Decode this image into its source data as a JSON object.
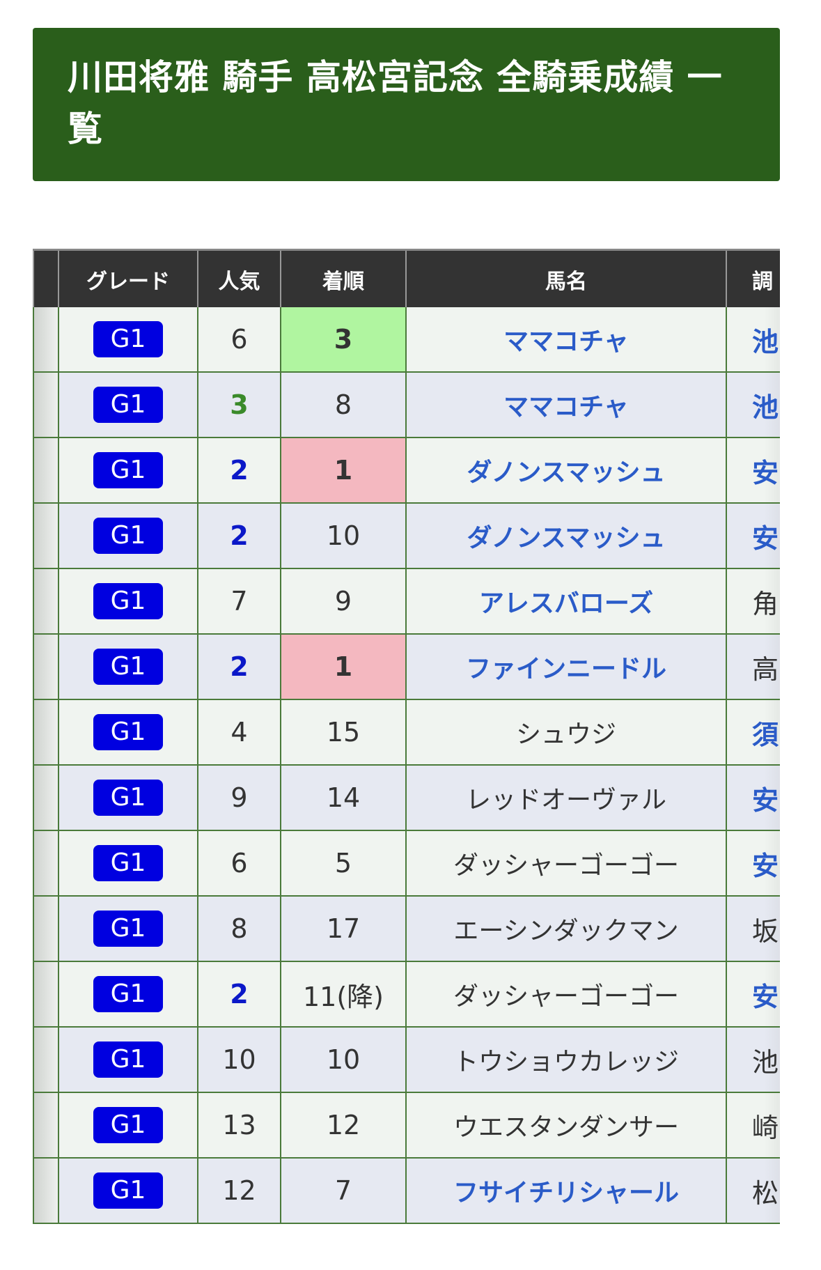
{
  "page_title": "川田将雅 騎手 高松宮記念 全騎乗成績 一覧",
  "columns": [
    "",
    "グレード",
    "人気",
    "着順",
    "馬名",
    "調"
  ],
  "colors": {
    "title_bg": "#2a5e1b",
    "header_bg": "#333333",
    "win_bg": "#f4b8c0",
    "place_bg": "#b0f5a0",
    "link": "#2a5bc8",
    "grade_badge": "#0000e0"
  },
  "rows": [
    {
      "grade": "G1",
      "pop": "6",
      "finish": "3",
      "horse": "ママコチャ",
      "trainer": "池",
      "finish_hl": "place",
      "horse_link": true,
      "trainer_link": true,
      "pop_style": ""
    },
    {
      "grade": "G1",
      "pop": "3",
      "finish": "8",
      "horse": "ママコチャ",
      "trainer": "池",
      "finish_hl": "",
      "horse_link": true,
      "trainer_link": true,
      "pop_style": "green"
    },
    {
      "grade": "G1",
      "pop": "2",
      "finish": "1",
      "horse": "ダノンスマッシュ",
      "trainer": "安",
      "finish_hl": "win",
      "horse_link": true,
      "trainer_link": true,
      "pop_style": "blue"
    },
    {
      "grade": "G1",
      "pop": "2",
      "finish": "10",
      "horse": "ダノンスマッシュ",
      "trainer": "安",
      "finish_hl": "",
      "horse_link": true,
      "trainer_link": true,
      "pop_style": "blue"
    },
    {
      "grade": "G1",
      "pop": "7",
      "finish": "9",
      "horse": "アレスバローズ",
      "trainer": "角",
      "finish_hl": "",
      "horse_link": true,
      "trainer_link": false,
      "pop_style": ""
    },
    {
      "grade": "G1",
      "pop": "2",
      "finish": "1",
      "horse": "ファインニードル",
      "trainer": "高",
      "finish_hl": "win",
      "horse_link": true,
      "trainer_link": false,
      "pop_style": "blue"
    },
    {
      "grade": "G1",
      "pop": "4",
      "finish": "15",
      "horse": "シュウジ",
      "trainer": "須",
      "finish_hl": "",
      "horse_link": false,
      "trainer_link": true,
      "pop_style": ""
    },
    {
      "grade": "G1",
      "pop": "9",
      "finish": "14",
      "horse": "レッドオーヴァル",
      "trainer": "安",
      "finish_hl": "",
      "horse_link": false,
      "trainer_link": true,
      "pop_style": ""
    },
    {
      "grade": "G1",
      "pop": "6",
      "finish": "5",
      "horse": "ダッシャーゴーゴー",
      "trainer": "安",
      "finish_hl": "",
      "horse_link": false,
      "trainer_link": true,
      "pop_style": ""
    },
    {
      "grade": "G1",
      "pop": "8",
      "finish": "17",
      "horse": "エーシンダックマン",
      "trainer": "坂",
      "finish_hl": "",
      "horse_link": false,
      "trainer_link": false,
      "pop_style": ""
    },
    {
      "grade": "G1",
      "pop": "2",
      "finish": "11(降)",
      "horse": "ダッシャーゴーゴー",
      "trainer": "安",
      "finish_hl": "",
      "horse_link": false,
      "trainer_link": true,
      "pop_style": "blue"
    },
    {
      "grade": "G1",
      "pop": "10",
      "finish": "10",
      "horse": "トウショウカレッジ",
      "trainer": "池",
      "finish_hl": "",
      "horse_link": false,
      "trainer_link": false,
      "pop_style": ""
    },
    {
      "grade": "G1",
      "pop": "13",
      "finish": "12",
      "horse": "ウエスタンダンサー",
      "trainer": "崎",
      "finish_hl": "",
      "horse_link": false,
      "trainer_link": false,
      "pop_style": ""
    },
    {
      "grade": "G1",
      "pop": "12",
      "finish": "7",
      "horse": "フサイチリシャール",
      "trainer": "松",
      "finish_hl": "",
      "horse_link": true,
      "trainer_link": false,
      "pop_style": ""
    }
  ]
}
